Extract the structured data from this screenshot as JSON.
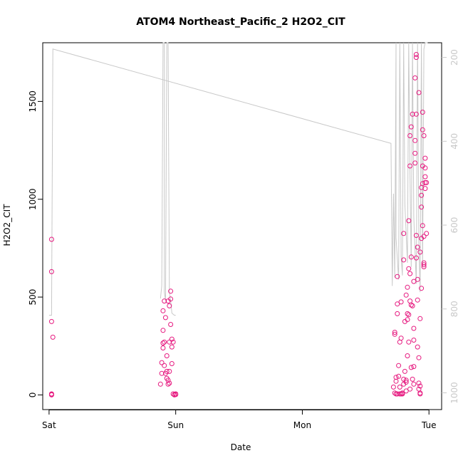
{
  "chart_data": {
    "type": "scatter",
    "title": "ATOM4 Northeast_Pacific_2 H2O2_CIT",
    "xlabel": "Date",
    "ylabel": "H2O2_CIT",
    "x_ticks": [
      "Sat",
      "Sun",
      "Mon",
      "Tue"
    ],
    "y_ticks": [
      0,
      500,
      1000,
      1500
    ],
    "y2_ticks": [
      200,
      400,
      600,
      800,
      1000
    ],
    "xlim": [
      -0.05,
      3.1
    ],
    "ylim": [
      -75,
      1800
    ],
    "y2lim": [
      1040,
      165
    ],
    "grid": false,
    "legend": "none",
    "colors": {
      "points": "#e6197f",
      "line": "#c8c8c8",
      "axis": "#000000",
      "right_axis": "#c8c8c8"
    },
    "series": [
      {
        "kind": "points",
        "values": [
          [
            0.02,
            5
          ],
          [
            0.02,
            0
          ],
          [
            0.02,
            2
          ],
          [
            0.02,
            375
          ],
          [
            0.02,
            630
          ],
          [
            0.02,
            795
          ],
          [
            0.03,
            295
          ],
          [
            0.88,
            55
          ],
          [
            0.89,
            110
          ],
          [
            0.89,
            165
          ],
          [
            0.9,
            240
          ],
          [
            0.9,
            265
          ],
          [
            0.9,
            330
          ],
          [
            0.9,
            430
          ],
          [
            0.91,
            480
          ],
          [
            0.91,
            270
          ],
          [
            0.91,
            150
          ],
          [
            0.92,
            110
          ],
          [
            0.92,
            395
          ],
          [
            0.93,
            200
          ],
          [
            0.93,
            85
          ],
          [
            0.93,
            120
          ],
          [
            0.94,
            75
          ],
          [
            0.94,
            480
          ],
          [
            0.94,
            55
          ],
          [
            0.95,
            455
          ],
          [
            0.95,
            60
          ],
          [
            0.95,
            120
          ],
          [
            0.95,
            270
          ],
          [
            0.96,
            490
          ],
          [
            0.96,
            530
          ],
          [
            0.96,
            360
          ],
          [
            0.97,
            160
          ],
          [
            0.97,
            285
          ],
          [
            0.97,
            245
          ],
          [
            0.98,
            270
          ],
          [
            0.98,
            5
          ],
          [
            0.99,
            2
          ],
          [
            0.99,
            0
          ],
          [
            1.0,
            5
          ],
          [
            1.0,
            2
          ],
          [
            2.72,
            40
          ],
          [
            2.73,
            310
          ],
          [
            2.73,
            320
          ],
          [
            2.73,
            10
          ],
          [
            2.74,
            70
          ],
          [
            2.74,
            5
          ],
          [
            2.74,
            90
          ],
          [
            2.75,
            605
          ],
          [
            2.75,
            415
          ],
          [
            2.75,
            465
          ],
          [
            2.75,
            5
          ],
          [
            2.76,
            95
          ],
          [
            2.76,
            150
          ],
          [
            2.77,
            270
          ],
          [
            2.77,
            40
          ],
          [
            2.77,
            5
          ],
          [
            2.78,
            5
          ],
          [
            2.78,
            475
          ],
          [
            2.78,
            290
          ],
          [
            2.79,
            5
          ],
          [
            2.79,
            10
          ],
          [
            2.8,
            80
          ],
          [
            2.8,
            55
          ],
          [
            2.8,
            690
          ],
          [
            2.8,
            825
          ],
          [
            2.81,
            375
          ],
          [
            2.81,
            120
          ],
          [
            2.82,
            20
          ],
          [
            2.82,
            65
          ],
          [
            2.82,
            75
          ],
          [
            2.82,
            510
          ],
          [
            2.83,
            385
          ],
          [
            2.83,
            550
          ],
          [
            2.83,
            200
          ],
          [
            2.83,
            415
          ],
          [
            2.84,
            645
          ],
          [
            2.84,
            890
          ],
          [
            2.84,
            410
          ],
          [
            2.84,
            270
          ],
          [
            2.85,
            620
          ],
          [
            2.85,
            1170
          ],
          [
            2.85,
            1325
          ],
          [
            2.85,
            30
          ],
          [
            2.85,
            480
          ],
          [
            2.86,
            460
          ],
          [
            2.86,
            140
          ],
          [
            2.86,
            1370
          ],
          [
            2.86,
            705
          ],
          [
            2.87,
            1435
          ],
          [
            2.87,
            455
          ],
          [
            2.87,
            80
          ],
          [
            2.88,
            580
          ],
          [
            2.88,
            145
          ],
          [
            2.88,
            280
          ],
          [
            2.88,
            55
          ],
          [
            2.88,
            340
          ],
          [
            2.89,
            1235
          ],
          [
            2.89,
            1300
          ],
          [
            2.89,
            1185
          ],
          [
            2.89,
            1620
          ],
          [
            2.9,
            700
          ],
          [
            2.9,
            815
          ],
          [
            2.9,
            1435
          ],
          [
            2.9,
            1740
          ],
          [
            2.9,
            1725
          ],
          [
            2.91,
            755
          ],
          [
            2.91,
            485
          ],
          [
            2.91,
            590
          ],
          [
            2.91,
            245
          ],
          [
            2.92,
            1545
          ],
          [
            2.92,
            190
          ],
          [
            2.92,
            60
          ],
          [
            2.92,
            30
          ],
          [
            2.93,
            10
          ],
          [
            2.93,
            5
          ],
          [
            2.93,
            45
          ],
          [
            2.93,
            390
          ],
          [
            2.93,
            730
          ],
          [
            2.94,
            960
          ],
          [
            2.94,
            1020
          ],
          [
            2.94,
            1060
          ],
          [
            2.94,
            800
          ],
          [
            2.94,
            545
          ],
          [
            2.95,
            1355
          ],
          [
            2.95,
            1445
          ],
          [
            2.95,
            1170
          ],
          [
            2.95,
            1080
          ],
          [
            2.95,
            865
          ],
          [
            2.96,
            675
          ],
          [
            2.96,
            655
          ],
          [
            2.96,
            665
          ],
          [
            2.96,
            1325
          ],
          [
            2.96,
            810
          ],
          [
            2.97,
            1160
          ],
          [
            2.97,
            1210
          ],
          [
            2.97,
            1115
          ],
          [
            2.97,
            1085
          ],
          [
            2.97,
            1055
          ],
          [
            2.98,
            825
          ],
          [
            2.98,
            1085
          ]
        ]
      },
      {
        "kind": "line",
        "axis": "right",
        "values": [
          [
            0.0,
            815
          ],
          [
            0.02,
            815
          ],
          [
            0.03,
            180
          ],
          [
            2.7,
            405
          ],
          [
            2.71,
            745
          ],
          [
            2.72,
            525
          ],
          [
            2.73,
            725
          ],
          [
            2.74,
            165
          ],
          [
            2.74,
            630
          ],
          [
            2.76,
            730
          ],
          [
            2.77,
            165
          ],
          [
            2.78,
            675
          ],
          [
            2.79,
            720
          ],
          [
            2.8,
            165
          ],
          [
            2.81,
            550
          ],
          [
            2.83,
            690
          ],
          [
            2.84,
            165
          ],
          [
            2.85,
            480
          ],
          [
            2.86,
            700
          ],
          [
            2.87,
            165
          ],
          [
            2.88,
            580
          ],
          [
            2.9,
            740
          ],
          [
            2.91,
            165
          ],
          [
            2.92,
            640
          ],
          [
            2.93,
            760
          ],
          [
            2.94,
            165
          ],
          [
            2.95,
            700
          ],
          [
            2.96,
            180
          ],
          [
            2.97,
            165
          ],
          [
            2.98,
            165
          ],
          [
            2.99,
            165
          ],
          [
            null,
            null
          ],
          [
            0.88,
            775
          ],
          [
            0.89,
            745
          ],
          [
            0.9,
            165
          ],
          [
            0.91,
            165
          ],
          [
            0.91,
            760
          ],
          [
            0.92,
            780
          ],
          [
            0.93,
            165
          ],
          [
            0.94,
            165
          ],
          [
            0.95,
            760
          ],
          [
            0.96,
            780
          ],
          [
            0.97,
            810
          ],
          [
            0.99,
            815
          ],
          [
            1.0,
            815
          ]
        ]
      }
    ]
  }
}
